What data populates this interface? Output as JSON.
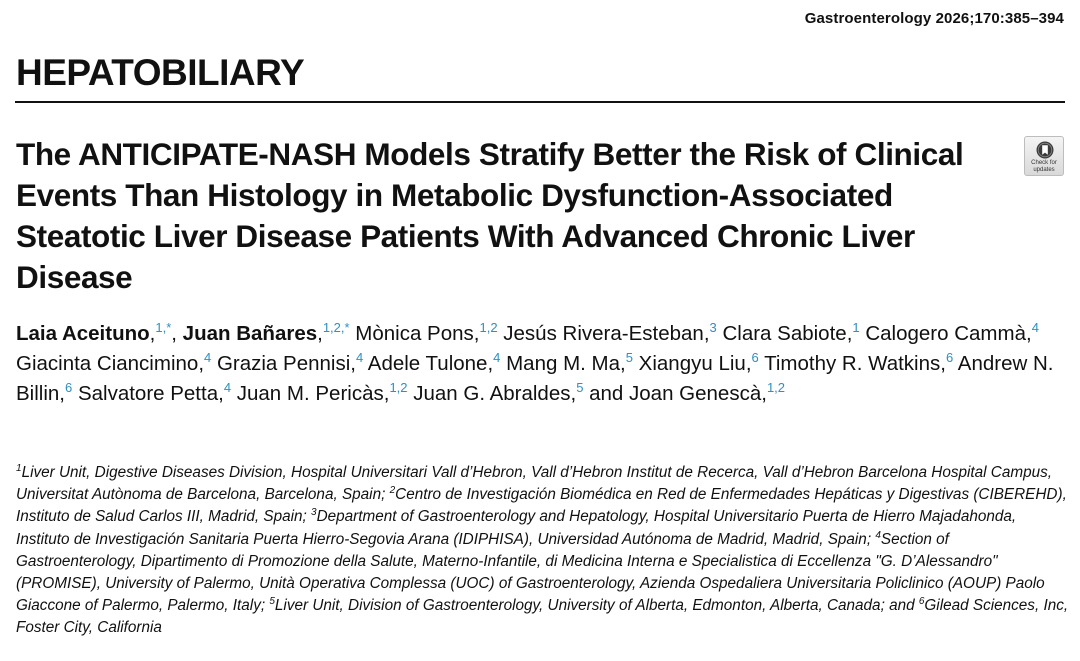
{
  "journal_reference": "Gastroenterology 2026;170:385–394",
  "section": "HEPATOBILIARY",
  "article_title": "The ANTICIPATE-NASH Models Stratify Better the Risk of Clinical Events Than Histology in Metabolic Dysfunction-Associated Steatotic Liver Disease Patients With Advanced Chronic Liver Disease",
  "check_updates": {
    "line1": "Check for",
    "line2": "updates",
    "icon": "bookmark-icon"
  },
  "authors": [
    {
      "name": "Laia Aceituno",
      "sup": "1,*",
      "sep": ", ",
      "lead": true
    },
    {
      "name": "Juan Bañares",
      "sup": "1,2,*",
      "sep": " ",
      "lead": true
    },
    {
      "name": "Mònica Pons",
      "sup": "1,2",
      "sep": " "
    },
    {
      "name": "Jesús Rivera-Esteban",
      "sup": "3",
      "sep": " "
    },
    {
      "name": "Clara Sabiote",
      "sup": "1",
      "sep": " "
    },
    {
      "name": "Calogero Cammà",
      "sup": "4",
      "sep": " "
    },
    {
      "name": "Giacinta Ciancimino",
      "sup": "4",
      "sep": " "
    },
    {
      "name": "Grazia Pennisi",
      "sup": "4",
      "sep": " "
    },
    {
      "name": "Adele Tulone",
      "sup": "4",
      "sep": " "
    },
    {
      "name": "Mang M. Ma",
      "sup": "5",
      "sep": " "
    },
    {
      "name": "Xiangyu Liu",
      "sup": "6",
      "sep": " "
    },
    {
      "name": "Timothy R. Watkins",
      "sup": "6",
      "sep": " "
    },
    {
      "name": "Andrew N. Billin",
      "sup": "6",
      "sep": " "
    },
    {
      "name": "Salvatore Petta",
      "sup": "4",
      "sep": " "
    },
    {
      "name": "Juan M. Pericàs",
      "sup": "1,2",
      "sep": " "
    },
    {
      "name": "Juan G. Abraldes",
      "sup": "5",
      "sep": " and "
    },
    {
      "name": "Joan Genescà",
      "sup": "1,2",
      "sep": ""
    }
  ],
  "affiliations": [
    {
      "num": "1",
      "text": "Liver Unit, Digestive Diseases Division, Hospital Universitari Vall d’Hebron, Vall d’Hebron Institut de Recerca, Vall d’Hebron Barcelona Hospital Campus, Universitat Autònoma de Barcelona, Barcelona, Spain; "
    },
    {
      "num": "2",
      "text": "Centro de Investigación Biomédica en Red de Enfermedades Hepáticas y Digestivas (CIBEREHD), Instituto de Salud Carlos III, Madrid, Spain; "
    },
    {
      "num": "3",
      "text": "Department of Gastroenterology and Hepatology, Hospital Universitario Puerta de Hierro Majadahonda, Instituto de Investigación Sanitaria Puerta Hierro-Segovia Arana (IDIPHISA), Universidad Autónoma de Madrid, Madrid, Spain; "
    },
    {
      "num": "4",
      "text": "Section of Gastroenterology, Dipartimento di Promozione della Salute, Materno-Infantile, di Medicina Interna e Specialistica di Eccellenza \"G. D’Alessandro\" (PROMISE), University of Palermo, Unità Operativa Complessa (UOC) of Gastroenterology, Azienda Ospedaliera Universitaria Policlinico (AOUP) Paolo Giaccone of Palermo, Palermo, Italy; "
    },
    {
      "num": "5",
      "text": "Liver Unit, Division of Gastroenterology, University of Alberta, Edmonton, Alberta, Canada; and "
    },
    {
      "num": "6",
      "text": "Gilead Sciences, Inc, Foster City, California"
    }
  ]
}
